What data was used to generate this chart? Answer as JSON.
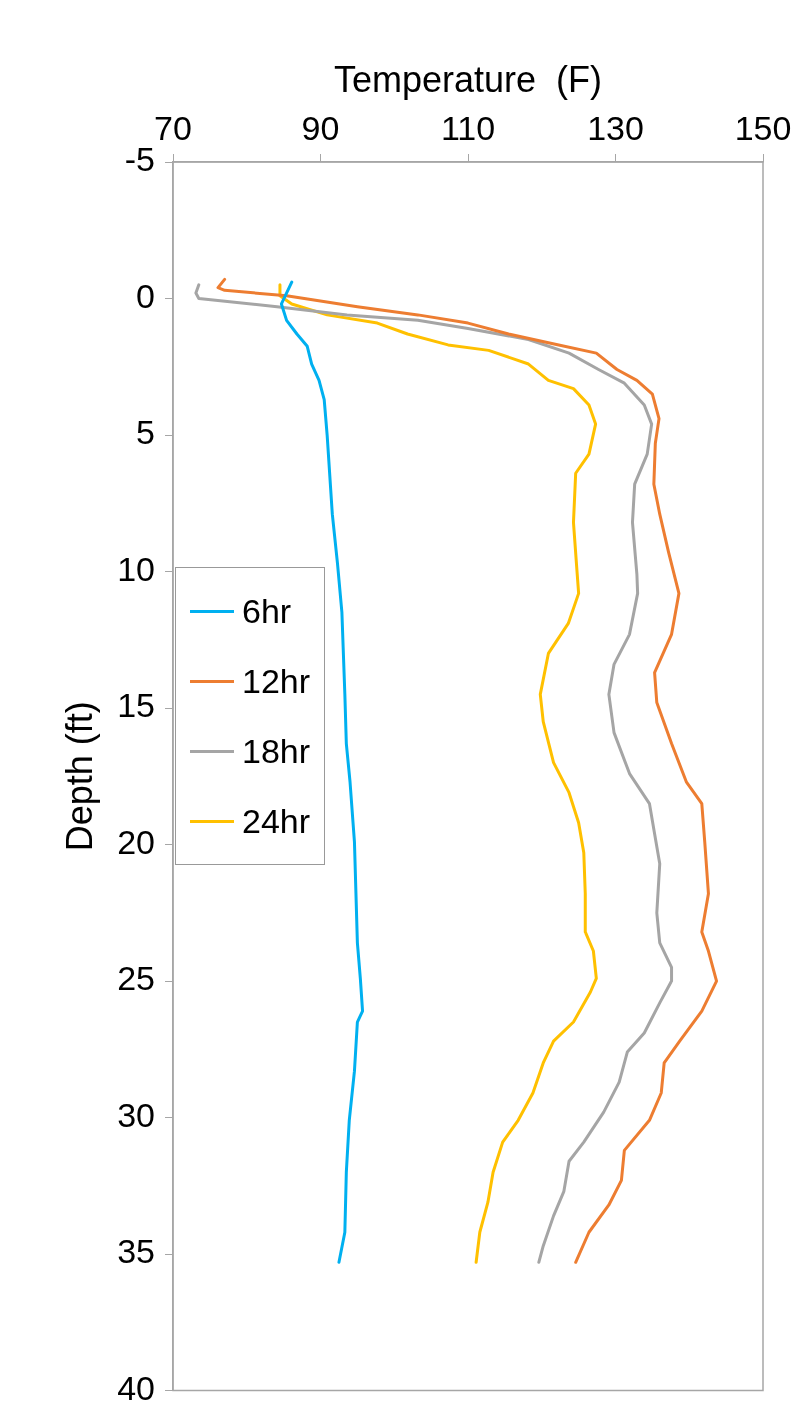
{
  "chart_data": {
    "type": "line",
    "xlabel": "Temperature  (F)",
    "ylabel": "Depth (ft)",
    "xlim": [
      70,
      150
    ],
    "xticks": [
      70,
      90,
      110,
      130,
      150
    ],
    "ylim": [
      40,
      -5
    ],
    "yticks": [
      -5,
      0,
      5,
      10,
      15,
      20,
      25,
      30,
      35,
      40
    ],
    "legend": "left",
    "series": [
      {
        "name": "6hr",
        "color": "#00b0f0",
        "x": [
          86.1,
          84.7,
          85.4,
          86.8,
          88.2,
          88.8,
          89.8,
          90.5,
          90.9,
          91.6,
          92.3,
          92.9,
          93.3,
          93.5,
          94.0,
          94.6,
          95.0,
          95.4,
          95.7,
          95.0,
          94.6,
          93.9,
          93.5,
          93.3,
          92.5
        ],
        "values": [
          -0.6,
          0.2,
          0.8,
          1.3,
          1.75,
          2.4,
          3.0,
          3.7,
          5.0,
          7.9,
          9.7,
          11.5,
          14.5,
          16.3,
          17.7,
          19.9,
          23.6,
          24.9,
          26.1,
          26.5,
          28.3,
          30.1,
          32.0,
          34.2,
          35.3
        ]
      },
      {
        "name": "12hr",
        "color": "#ed7d31",
        "x": [
          77.0,
          76.1,
          77.0,
          85.4,
          95.0,
          103.2,
          110.0,
          115.5,
          122.3,
          127.4,
          130.2,
          132.9,
          135.0,
          135.9,
          135.4,
          135.2,
          136.0,
          137.2,
          138.6,
          137.6,
          135.3,
          135.6,
          137.6,
          139.6,
          141.7,
          142.1,
          142.6,
          141.7,
          142.6,
          143.7,
          141.7,
          138.7,
          136.6,
          136.2,
          134.6,
          131.2,
          130.8,
          129.1,
          126.4,
          124.6
        ],
        "values": [
          -0.7,
          -0.4,
          -0.3,
          -0.1,
          0.3,
          0.6,
          0.9,
          1.3,
          1.7,
          2.0,
          2.6,
          3.0,
          3.5,
          4.4,
          5.3,
          6.8,
          7.9,
          9.3,
          10.8,
          12.3,
          13.7,
          14.8,
          16.3,
          17.7,
          18.5,
          19.9,
          21.8,
          23.2,
          23.9,
          25.0,
          26.1,
          27.2,
          28.0,
          29.1,
          30.1,
          31.2,
          32.3,
          33.2,
          34.2,
          35.3
        ]
      },
      {
        "name": "18hr",
        "color": "#a5a5a5",
        "x": [
          73.5,
          73.1,
          73.5,
          84.1,
          93.6,
          103.2,
          110.0,
          118.2,
          123.7,
          127.7,
          131.2,
          133.9,
          134.9,
          134.3,
          132.6,
          132.3,
          132.9,
          133.0,
          131.9,
          129.8,
          129.1,
          129.8,
          131.9,
          134.6,
          135.3,
          136.0,
          135.6,
          136.0,
          137.6,
          137.6,
          136.0,
          133.9,
          131.6,
          130.5,
          128.4,
          125.7,
          123.7,
          123.0,
          121.6,
          120.2,
          119.6
        ],
        "values": [
          -0.5,
          -0.2,
          0.0,
          0.3,
          0.6,
          0.8,
          1.1,
          1.5,
          2.0,
          2.6,
          3.1,
          3.9,
          4.6,
          5.7,
          6.8,
          8.2,
          10.1,
          10.8,
          12.3,
          13.4,
          14.5,
          15.9,
          17.4,
          18.5,
          19.6,
          20.7,
          22.5,
          23.6,
          24.5,
          25.0,
          25.8,
          26.9,
          27.6,
          28.7,
          29.8,
          30.9,
          31.6,
          32.7,
          33.6,
          34.7,
          35.3
        ]
      },
      {
        "name": "24hr",
        "color": "#ffc000",
        "x": [
          84.5,
          84.5,
          86.1,
          90.9,
          97.7,
          101.8,
          107.3,
          112.8,
          118.2,
          120.9,
          124.3,
          126.4,
          127.3,
          126.4,
          124.6,
          124.3,
          124.7,
          125.0,
          123.6,
          120.9,
          119.8,
          120.2,
          121.6,
          123.7,
          125.0,
          125.7,
          125.9,
          125.9,
          127.0,
          127.4,
          126.6,
          124.3,
          121.6,
          120.2,
          118.8,
          116.8,
          114.7,
          113.4,
          112.7,
          111.6,
          111.1
        ],
        "values": [
          -0.5,
          -0.1,
          0.2,
          0.6,
          0.9,
          1.3,
          1.7,
          1.9,
          2.4,
          3.0,
          3.3,
          3.9,
          4.6,
          5.7,
          6.4,
          8.2,
          9.7,
          10.8,
          11.9,
          13.0,
          14.5,
          15.5,
          17.0,
          18.1,
          19.2,
          20.3,
          21.8,
          23.2,
          23.9,
          24.9,
          25.4,
          26.5,
          27.2,
          28.0,
          29.1,
          30.1,
          30.9,
          32.0,
          33.1,
          34.2,
          35.3
        ]
      }
    ]
  }
}
